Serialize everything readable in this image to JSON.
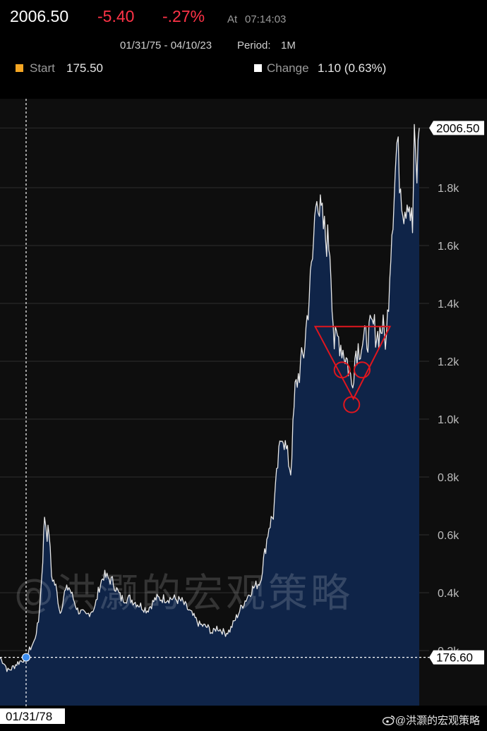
{
  "header": {
    "last": "2006.50",
    "change_abs": "-5.40",
    "change_pct": "-.27%",
    "asof_label": "At",
    "asof_time": "07:14:03",
    "range": "01/31/75 - 04/10/23",
    "period_label": "Period:",
    "period": "1M",
    "start_label": "Start",
    "start_value": "175.50",
    "change_label": "Change",
    "change_value": "1.10 (0.63%)"
  },
  "colors": {
    "accent_up": "#ffffff",
    "accent_down": "#ff3347",
    "area_fill": "#0f2448",
    "line": "#e8e8e8",
    "start_swatch": "#f5a623",
    "annotation": "#e0161e"
  },
  "watermark": {
    "big": "@洪灏的宏观策略",
    "small": "@洪灏的宏观策略",
    "weibo_icon": "weibo-icon"
  },
  "chart_data": {
    "type": "area",
    "title": "",
    "xlabel": "",
    "ylabel": "",
    "ylim": [
      0,
      2.05
    ],
    "xlim": [
      1975.08,
      2023.27
    ],
    "y_axis_side": "right",
    "y_tick_labels": [
      "0.2k",
      "0.4k",
      "0.6k",
      "0.8k",
      "1.0k",
      "1.2k",
      "1.4k",
      "1.6k",
      "1.8k"
    ],
    "y_ticks": [
      0.2,
      0.4,
      0.6,
      0.8,
      1.0,
      1.2,
      1.4,
      1.6,
      1.8
    ],
    "grid": true,
    "last_value_label": "2006.50",
    "last_value": 2.0065,
    "crosshair_value_label": "176.60",
    "crosshair_value": 0.1766,
    "crosshair_date_label": "01/31/78",
    "crosshair_date": 1978.08,
    "series": [
      {
        "x": [
          1975.08,
          1975.5,
          1976.0,
          1976.5,
          1977.0,
          1977.5,
          1978.08,
          1978.6,
          1979.0,
          1979.5,
          1979.8,
          1980.0,
          1980.2,
          1980.5,
          1980.7,
          1981.0,
          1981.5,
          1982.0,
          1982.5,
          1983.0,
          1984.0,
          1985.0,
          1986.0,
          1986.5,
          1987.0,
          1988.0,
          1989.0,
          1990.0,
          1991.0,
          1992.0,
          1993.0,
          1994.0,
          1995.0,
          1996.0,
          1997.0,
          1998.0,
          1999.0,
          1999.5,
          2000.0,
          2000.5,
          2001.0,
          2001.5,
          2002.0,
          2003.0,
          2004.0,
          2005.0,
          2006.0,
          2006.5,
          2007.0,
          2007.5,
          2008.0,
          2008.5,
          2009.0,
          2010.0,
          2011.0,
          2011.5,
          2011.8,
          2012.0,
          2012.5,
          2013.0,
          2013.5,
          2014.0,
          2015.0,
          2015.5,
          2016.0,
          2017.0,
          2018.0,
          2018.5,
          2019.0,
          2019.5,
          2020.0,
          2020.5,
          2020.7,
          2021.0,
          2021.5,
          2022.0,
          2022.5,
          2022.7,
          2023.0,
          2023.27
        ],
        "values": [
          0.175,
          0.16,
          0.13,
          0.14,
          0.155,
          0.165,
          0.1766,
          0.21,
          0.23,
          0.3,
          0.42,
          0.52,
          0.67,
          0.6,
          0.62,
          0.46,
          0.42,
          0.33,
          0.4,
          0.42,
          0.34,
          0.32,
          0.35,
          0.42,
          0.46,
          0.44,
          0.38,
          0.38,
          0.36,
          0.34,
          0.38,
          0.38,
          0.38,
          0.37,
          0.33,
          0.29,
          0.28,
          0.26,
          0.28,
          0.27,
          0.26,
          0.27,
          0.3,
          0.36,
          0.41,
          0.44,
          0.63,
          0.67,
          0.84,
          0.96,
          0.89,
          0.82,
          1.1,
          1.23,
          1.55,
          1.82,
          1.72,
          1.7,
          1.63,
          1.6,
          1.26,
          1.28,
          1.2,
          1.12,
          1.24,
          1.27,
          1.32,
          1.29,
          1.32,
          1.27,
          1.6,
          1.85,
          1.95,
          1.85,
          1.73,
          1.78,
          1.65,
          1.95,
          1.84,
          2.0065
        ]
      }
    ],
    "annotations": [
      {
        "kind": "triangle",
        "vertices": [
          [
            2011.3,
            1.32
          ],
          [
            2019.9,
            1.32
          ],
          [
            2015.7,
            1.07
          ]
        ]
      },
      {
        "kind": "circle",
        "center": [
          2014.4,
          1.17
        ]
      },
      {
        "kind": "circle",
        "center": [
          2016.7,
          1.17
        ]
      },
      {
        "kind": "circle",
        "center": [
          2015.5,
          1.05
        ]
      }
    ]
  }
}
